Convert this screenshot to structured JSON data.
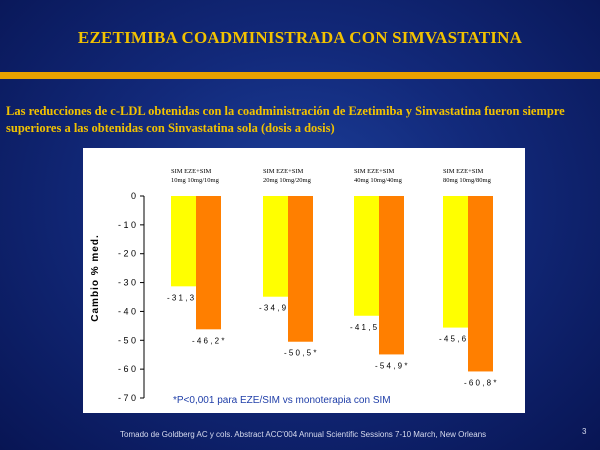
{
  "slide": {
    "title": "EZETIMIBA COADMINISTRADA CON SIMVASTATINA",
    "subtitle": "Las reducciones de c-LDL obtenidas con la coadministración de Ezetimiba y Sinvastatina fueron siempre superiores a las obtenidas con Sinvastatina sola (dosis a dosis)",
    "footnote": "Tomado de Goldberg AC  y cols. Abstract ACC'004 Annual Scientific Sessions 7-10 March, New Orleans",
    "page_number": "3"
  },
  "colors": {
    "background": "#12297a",
    "accent": "#e8a100",
    "title_text": "#f2c200",
    "sim_bar": "#ffff00",
    "eze_bar": "#ff7f00",
    "annotation_text": "#1f3ea8"
  },
  "chart_data": {
    "type": "bar",
    "ylabel": "Cambio % med.",
    "ylim": [
      -70,
      0
    ],
    "yticks": [
      0,
      -10,
      -20,
      -30,
      -40,
      -50,
      -60,
      -70
    ],
    "ytick_labels": [
      "0",
      "- 1 0",
      "- 2 0",
      "- 3 0",
      "- 4 0",
      "- 5 0",
      "- 6 0",
      "- 7 0"
    ],
    "grid": false,
    "legend": "none",
    "groups": [
      {
        "header_line1": "SIM    EZE+SIM",
        "header_line2": "10mg  10mg/10mg",
        "sim": -31.3,
        "eze_sim": -46.2,
        "sim_label": "- 3 1 , 3",
        "eze_label": "- 4 6 , 2 *"
      },
      {
        "header_line1": "SIM     EZE+SIM",
        "header_line2": "20mg  10mg/20mg",
        "sim": -34.9,
        "eze_sim": -50.5,
        "sim_label": "- 3 4 , 9",
        "eze_label": "- 5 0 , 5 *"
      },
      {
        "header_line1": "SIM    EZE+SIM",
        "header_line2": "40mg 10mg/40mg",
        "sim": -41.5,
        "eze_sim": -54.9,
        "sim_label": "- 4 1 , 5",
        "eze_label": "- 5 4 , 9 *"
      },
      {
        "header_line1": "SIM    EZE+SIM",
        "header_line2": "80mg   10mg/80mg",
        "sim": -45.6,
        "eze_sim": -60.8,
        "sim_label": "- 4 5 , 6",
        "eze_label": "- 6 0 , 8 *"
      }
    ],
    "annotation": "*P<0,001 para EZE/SIM vs monoterapia con SIM"
  }
}
